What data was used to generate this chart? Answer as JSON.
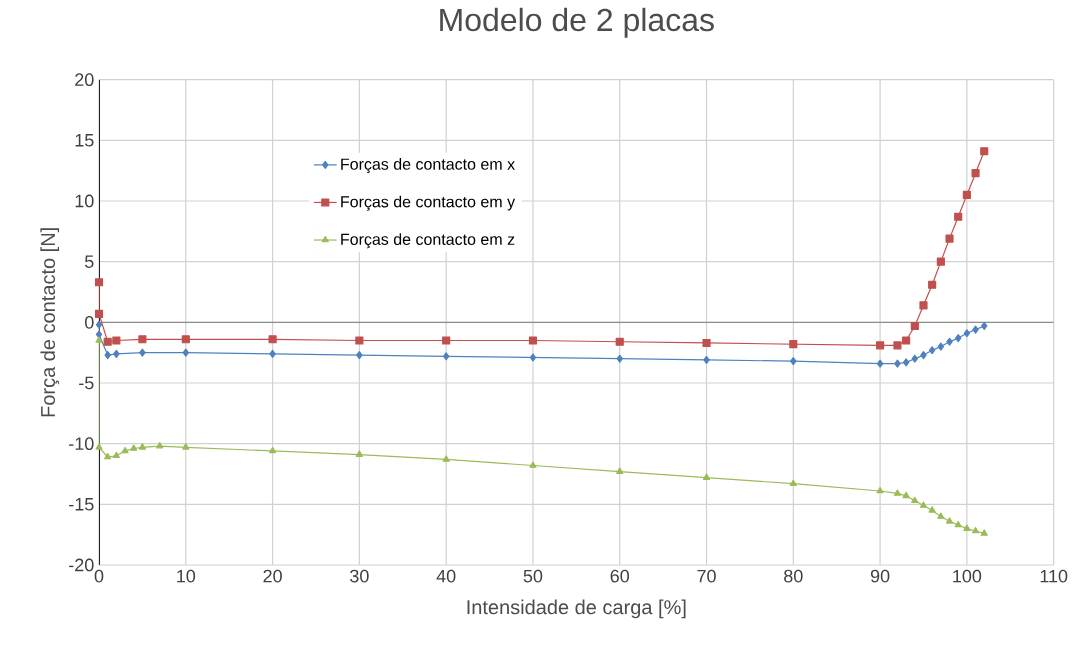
{
  "chart_data": {
    "type": "line",
    "title": "Modelo de 2 placas",
    "xlabel": "Intensidade de carga [%]",
    "ylabel": "Força de contacto [N]",
    "series": [
      {
        "name": "Forças de contacto em x",
        "color": "#4f81bd",
        "marker": "diamond",
        "x": [
          0,
          0,
          1,
          2,
          5,
          10,
          20,
          30,
          40,
          50,
          60,
          70,
          80,
          90,
          92,
          93,
          94,
          95,
          96,
          97,
          98,
          99,
          100,
          101,
          102
        ],
        "values": [
          -0.2,
          -1.0,
          -2.7,
          -2.6,
          -2.5,
          -2.5,
          -2.6,
          -2.7,
          -2.8,
          -2.9,
          -3.0,
          -3.1,
          -3.2,
          -3.4,
          -3.4,
          -3.3,
          -3.0,
          -2.7,
          -2.3,
          -2.0,
          -1.6,
          -1.3,
          -0.9,
          -0.6,
          -0.3
        ]
      },
      {
        "name": "Forças de contacto em y",
        "color": "#c0504d",
        "marker": "square",
        "x": [
          0,
          0,
          1,
          2,
          5,
          10,
          20,
          30,
          40,
          50,
          60,
          70,
          80,
          90,
          92,
          93,
          94,
          95,
          96,
          97,
          98,
          99,
          100,
          101,
          102
        ],
        "values": [
          3.3,
          0.7,
          -1.6,
          -1.5,
          -1.4,
          -1.4,
          -1.4,
          -1.5,
          -1.5,
          -1.5,
          -1.6,
          -1.7,
          -1.8,
          -1.9,
          -1.9,
          -1.5,
          -0.3,
          1.4,
          3.1,
          5.0,
          6.9,
          8.7,
          10.5,
          12.3,
          14.1
        ]
      },
      {
        "name": "Forças de contacto em z",
        "color": "#9bbb59",
        "marker": "triangle",
        "x": [
          0,
          0,
          1,
          2,
          3,
          4,
          5,
          7,
          10,
          20,
          30,
          40,
          50,
          60,
          70,
          80,
          90,
          92,
          93,
          94,
          95,
          96,
          97,
          98,
          99,
          100,
          101,
          102
        ],
        "values": [
          -1.5,
          -10.3,
          -11.1,
          -11.0,
          -10.6,
          -10.4,
          -10.3,
          -10.2,
          -10.3,
          -10.6,
          -10.9,
          -11.3,
          -11.8,
          -12.3,
          -12.8,
          -13.3,
          -13.9,
          -14.1,
          -14.3,
          -14.7,
          -15.1,
          -15.5,
          -16.0,
          -16.4,
          -16.7,
          -17.0,
          -17.2,
          -17.4
        ]
      }
    ],
    "xlim": [
      0,
      110
    ],
    "xticks": [
      0,
      10,
      20,
      30,
      40,
      50,
      60,
      70,
      80,
      90,
      100,
      110
    ],
    "ylim": [
      -20,
      20
    ],
    "yticks": [
      -20,
      -15,
      -10,
      -5,
      0,
      5,
      10,
      15,
      20
    ],
    "grid": true,
    "legend": "top",
    "line_style": "solid"
  }
}
